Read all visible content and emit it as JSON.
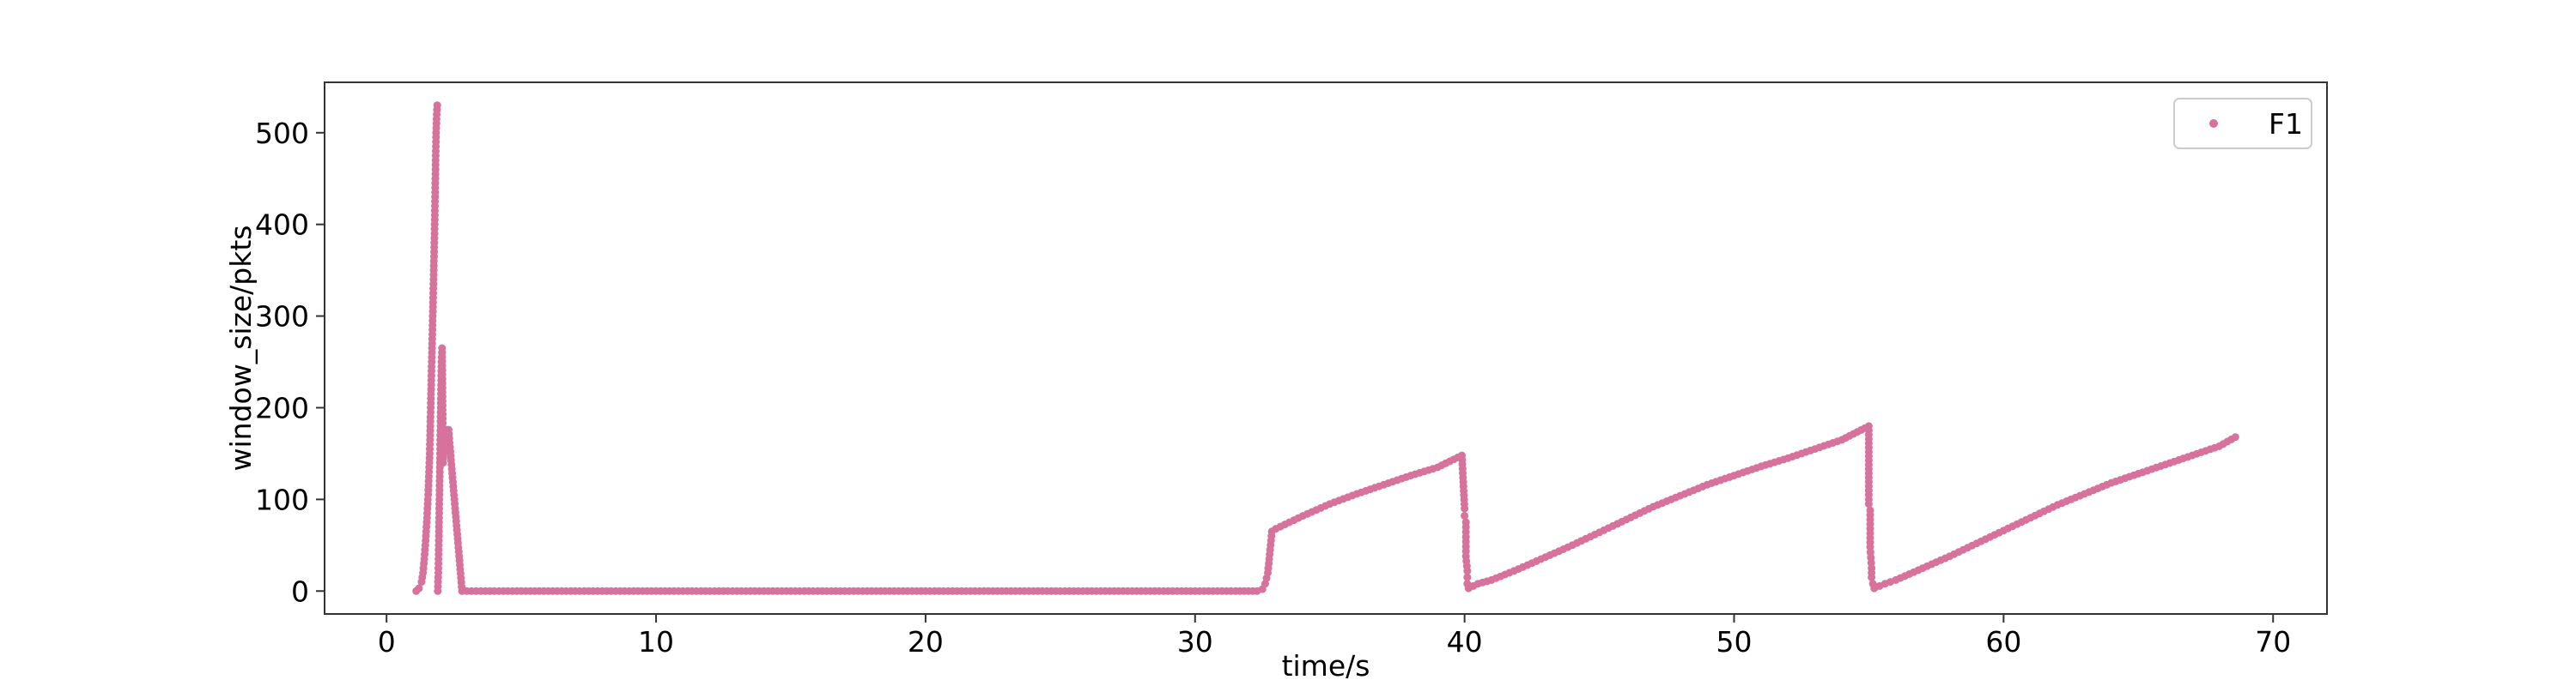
{
  "chart_data": {
    "type": "scatter",
    "title": "",
    "xlabel": "time/s",
    "ylabel": "window_size/pkts",
    "xlim": [
      -2.3,
      72
    ],
    "ylim": [
      -25,
      555
    ],
    "xticks": [
      0,
      10,
      20,
      30,
      40,
      50,
      60,
      70
    ],
    "yticks": [
      0,
      100,
      200,
      300,
      400,
      500
    ],
    "grid": false,
    "legend": {
      "position": "top-right"
    },
    "series": [
      {
        "name": "F1",
        "color": "#d6729b",
        "marker": "circle",
        "points": [
          [
            1.1,
            0
          ],
          [
            1.2,
            3
          ],
          [
            1.3,
            10
          ],
          [
            1.35,
            20
          ],
          [
            1.4,
            35
          ],
          [
            1.45,
            55
          ],
          [
            1.5,
            80
          ],
          [
            1.55,
            110
          ],
          [
            1.6,
            150
          ],
          [
            1.63,
            190
          ],
          [
            1.66,
            230
          ],
          [
            1.69,
            270
          ],
          [
            1.72,
            310
          ],
          [
            1.75,
            350
          ],
          [
            1.78,
            390
          ],
          [
            1.8,
            430
          ],
          [
            1.82,
            470
          ],
          [
            1.84,
            500
          ],
          [
            1.86,
            520
          ],
          [
            1.88,
            530
          ],
          [
            1.9,
            0
          ],
          [
            1.92,
            20
          ],
          [
            1.94,
            60
          ],
          [
            1.96,
            100
          ],
          [
            1.98,
            140
          ],
          [
            2.0,
            180
          ],
          [
            2.02,
            220
          ],
          [
            2.04,
            250
          ],
          [
            2.06,
            265
          ],
          [
            2.1,
            140
          ],
          [
            2.15,
            175
          ],
          [
            2.3,
            176
          ],
          [
            2.8,
            0
          ],
          [
            3.5,
            0
          ],
          [
            4.5,
            0
          ],
          [
            5.5,
            0
          ],
          [
            6.5,
            0
          ],
          [
            7.5,
            0
          ],
          [
            8.5,
            0
          ],
          [
            9.5,
            0
          ],
          [
            10.5,
            0
          ],
          [
            11.5,
            0
          ],
          [
            12.5,
            0
          ],
          [
            13.5,
            0
          ],
          [
            14.5,
            0
          ],
          [
            15.5,
            0
          ],
          [
            16.5,
            0
          ],
          [
            17.5,
            0
          ],
          [
            18.5,
            0
          ],
          [
            19.5,
            0
          ],
          [
            20.5,
            0
          ],
          [
            21.5,
            0
          ],
          [
            22.5,
            0
          ],
          [
            23.5,
            0
          ],
          [
            24.5,
            0
          ],
          [
            25.5,
            0
          ],
          [
            26.5,
            0
          ],
          [
            27.5,
            0
          ],
          [
            28.5,
            0
          ],
          [
            29.5,
            0
          ],
          [
            30.5,
            0
          ],
          [
            31.5,
            0
          ],
          [
            32.3,
            0
          ],
          [
            32.5,
            2
          ],
          [
            32.6,
            8
          ],
          [
            32.7,
            20
          ],
          [
            32.75,
            35
          ],
          [
            32.8,
            50
          ],
          [
            32.85,
            65
          ],
          [
            33.0,
            68
          ],
          [
            34.0,
            82
          ],
          [
            35.0,
            95
          ],
          [
            36.0,
            106
          ],
          [
            37.0,
            116
          ],
          [
            38.0,
            126
          ],
          [
            39.0,
            135
          ],
          [
            39.9,
            148
          ],
          [
            40.0,
            90
          ],
          [
            40.0,
            82
          ],
          [
            40.05,
            75
          ],
          [
            40.05,
            38
          ],
          [
            40.1,
            22
          ],
          [
            40.1,
            15
          ],
          [
            40.1,
            8
          ],
          [
            40.15,
            3
          ],
          [
            40.5,
            8
          ],
          [
            41.0,
            12
          ],
          [
            42.0,
            24
          ],
          [
            43.0,
            37
          ],
          [
            44.0,
            50
          ],
          [
            45.0,
            64
          ],
          [
            46.0,
            78
          ],
          [
            47.0,
            92
          ],
          [
            48.0,
            104
          ],
          [
            49.0,
            116
          ],
          [
            50.0,
            126
          ],
          [
            51.0,
            136
          ],
          [
            52.0,
            145
          ],
          [
            53.0,
            155
          ],
          [
            54.0,
            165
          ],
          [
            55.0,
            180
          ],
          [
            55.0,
            105
          ],
          [
            55.0,
            95
          ],
          [
            55.05,
            88
          ],
          [
            55.05,
            48
          ],
          [
            55.1,
            25
          ],
          [
            55.1,
            15
          ],
          [
            55.15,
            8
          ],
          [
            55.2,
            3
          ],
          [
            55.6,
            8
          ],
          [
            56.0,
            12
          ],
          [
            57.0,
            25
          ],
          [
            58.0,
            38
          ],
          [
            59.0,
            52
          ],
          [
            60.0,
            66
          ],
          [
            61.0,
            80
          ],
          [
            62.0,
            94
          ],
          [
            63.0,
            106
          ],
          [
            64.0,
            118
          ],
          [
            65.0,
            128
          ],
          [
            66.0,
            138
          ],
          [
            67.0,
            148
          ],
          [
            68.0,
            158
          ],
          [
            68.6,
            168
          ]
        ]
      }
    ]
  }
}
